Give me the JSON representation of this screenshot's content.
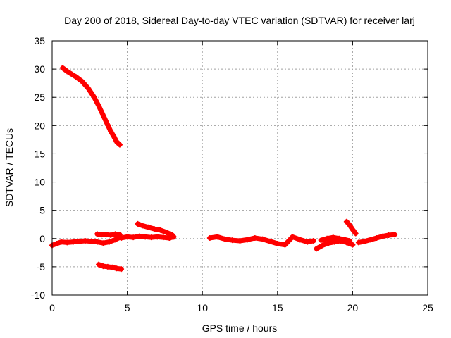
{
  "chart_data": {
    "type": "scatter",
    "title": "Day 200 of 2018, Sidereal Day-to-day VTEC variation (SDTVAR) for receiver larj",
    "xlabel": "GPS time / hours",
    "ylabel": "SDTVAR / TECUs",
    "xlim": [
      0,
      25
    ],
    "ylim": [
      -10,
      35
    ],
    "xticks": [
      0,
      5,
      10,
      15,
      20,
      25
    ],
    "yticks": [
      -10,
      -5,
      0,
      5,
      10,
      15,
      20,
      25,
      30,
      35
    ],
    "grid": true,
    "marker_color": "#ff0000",
    "series": [
      {
        "name": "arc1",
        "x": [
          0.7,
          1.0,
          1.3,
          1.6,
          2.0,
          2.4,
          2.8,
          3.1,
          3.4,
          3.7,
          3.9,
          4.1,
          4.3,
          4.5
        ],
        "y": [
          30.2,
          29.6,
          29.1,
          28.6,
          27.8,
          26.6,
          25.0,
          23.5,
          21.8,
          20.1,
          19.0,
          18.1,
          17.1,
          16.6
        ]
      },
      {
        "name": "arc2",
        "x": [
          0.0,
          0.3,
          0.6,
          1.0,
          1.4,
          1.8,
          2.2,
          2.6,
          3.0,
          3.4,
          3.8,
          4.2,
          4.5
        ],
        "y": [
          -1.2,
          -0.9,
          -0.6,
          -0.7,
          -0.6,
          -0.5,
          -0.4,
          -0.5,
          -0.6,
          -0.8,
          -0.6,
          -0.2,
          0.2
        ]
      },
      {
        "name": "arc3",
        "x": [
          3.0,
          3.3,
          3.6,
          3.9,
          4.2,
          4.5
        ],
        "y": [
          0.8,
          0.7,
          0.7,
          0.6,
          0.8,
          0.7
        ]
      },
      {
        "name": "arc4",
        "x": [
          3.1,
          3.4,
          3.7,
          4.0,
          4.3,
          4.6
        ],
        "y": [
          -4.6,
          -4.9,
          -5.0,
          -5.1,
          -5.3,
          -5.4
        ]
      },
      {
        "name": "arc5",
        "x": [
          4.6,
          5.0,
          5.4,
          5.8,
          6.2,
          6.6,
          7.0,
          7.4,
          7.8,
          8.1
        ],
        "y": [
          0.1,
          0.3,
          0.2,
          0.4,
          0.3,
          0.2,
          0.3,
          0.2,
          0.1,
          0.3
        ]
      },
      {
        "name": "arc6",
        "x": [
          5.7,
          6.0,
          6.4,
          6.8,
          7.2,
          7.6,
          8.0
        ],
        "y": [
          2.6,
          2.3,
          2.0,
          1.7,
          1.5,
          1.1,
          0.6
        ]
      },
      {
        "name": "arc7",
        "x": [
          10.5,
          11.0,
          11.5,
          12.0,
          12.5,
          13.0,
          13.5,
          14.0,
          14.5,
          15.0,
          15.5,
          16.0,
          16.5,
          17.0,
          17.4
        ],
        "y": [
          0.1,
          0.3,
          -0.1,
          -0.3,
          -0.4,
          -0.2,
          0.1,
          -0.1,
          -0.5,
          -0.9,
          -1.1,
          0.3,
          -0.2,
          -0.6,
          -0.4
        ]
      },
      {
        "name": "arc8",
        "x": [
          17.6,
          18.0,
          18.4,
          18.8,
          19.2,
          19.6,
          20.0
        ],
        "y": [
          -1.8,
          -1.2,
          -0.8,
          -0.6,
          -0.4,
          -0.7,
          -1.1
        ]
      },
      {
        "name": "arc9",
        "x": [
          17.9,
          18.3,
          18.7,
          19.1,
          19.5,
          19.8
        ],
        "y": [
          -0.3,
          0.0,
          0.2,
          0.0,
          -0.2,
          -0.4
        ]
      },
      {
        "name": "arc10",
        "x": [
          19.6,
          19.8,
          20.0,
          20.2
        ],
        "y": [
          3.0,
          2.4,
          1.6,
          0.9
        ]
      },
      {
        "name": "arc11",
        "x": [
          20.4,
          20.8,
          21.2,
          21.6,
          22.0,
          22.4,
          22.8
        ],
        "y": [
          -0.7,
          -0.5,
          -0.2,
          0.1,
          0.4,
          0.6,
          0.7
        ]
      }
    ]
  }
}
